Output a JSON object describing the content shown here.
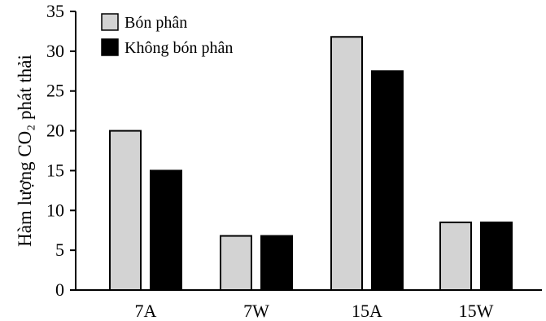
{
  "chart_data": {
    "type": "bar",
    "categories": [
      "7A",
      "7W",
      "15A",
      "15W"
    ],
    "series": [
      {
        "name": "Bón phân",
        "values": [
          20,
          6.8,
          31.8,
          8.5
        ],
        "color": "#d3d3d3"
      },
      {
        "name": "Không bón phân",
        "values": [
          15,
          6.8,
          27.5,
          8.5
        ],
        "color": "#000000"
      }
    ],
    "ylabel": "Hàm lượng CO₂ phát thải",
    "xlabel": "",
    "ylim": [
      0,
      35
    ],
    "yticks": [
      0,
      5,
      10,
      15,
      20,
      25,
      30,
      35
    ],
    "legend": "top-left",
    "grid": false
  }
}
